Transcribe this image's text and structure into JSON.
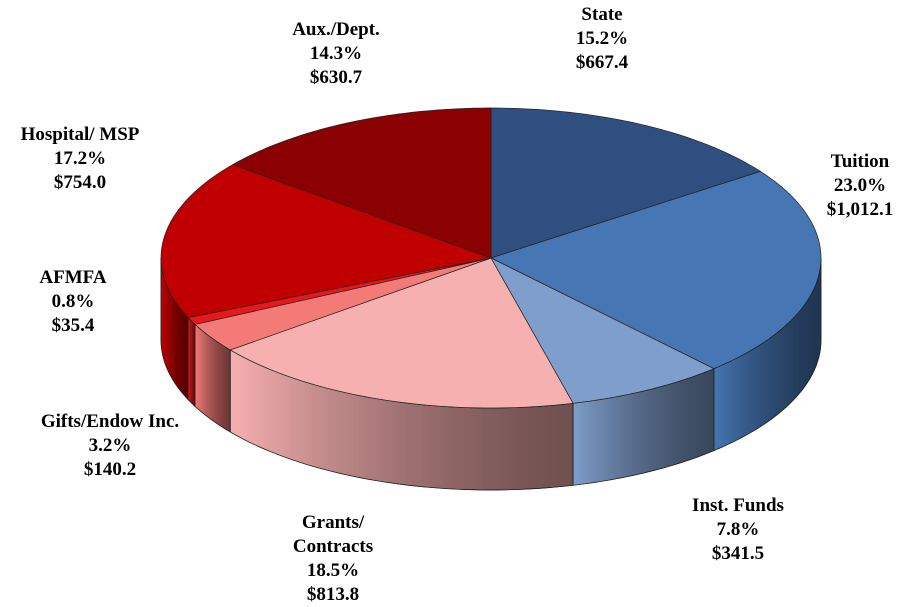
{
  "chart_data": {
    "type": "pie3d",
    "categories": [
      "State",
      "Tuition",
      "Inst. Funds",
      "Grants/ Contracts",
      "Gifts/Endow Inc.",
      "AFMFA",
      "Hospital/ MSP",
      "Aux./Dept."
    ],
    "values": [
      15.2,
      23.0,
      7.8,
      18.5,
      3.2,
      0.8,
      17.2,
      14.3
    ],
    "value_labels": [
      "15.2%",
      "23.0%",
      "7.8%",
      "18.5%",
      "3.2%",
      "0.8%",
      "17.2%",
      "14.3%"
    ],
    "amounts": [
      667.4,
      1012.1,
      341.5,
      813.8,
      140.2,
      35.4,
      754.0,
      630.7
    ],
    "amount_labels": [
      "$667.4",
      "$1,012.1",
      "$341.5",
      "$813.8",
      "$140.2",
      "$35.4",
      "$754.0",
      "$630.7"
    ],
    "colors": [
      "#2e4f7f",
      "#4676b3",
      "#7f9ecb",
      "#f7b0b0",
      "#f47a78",
      "#e8171a",
      "#c00000",
      "#8b0000"
    ]
  }
}
